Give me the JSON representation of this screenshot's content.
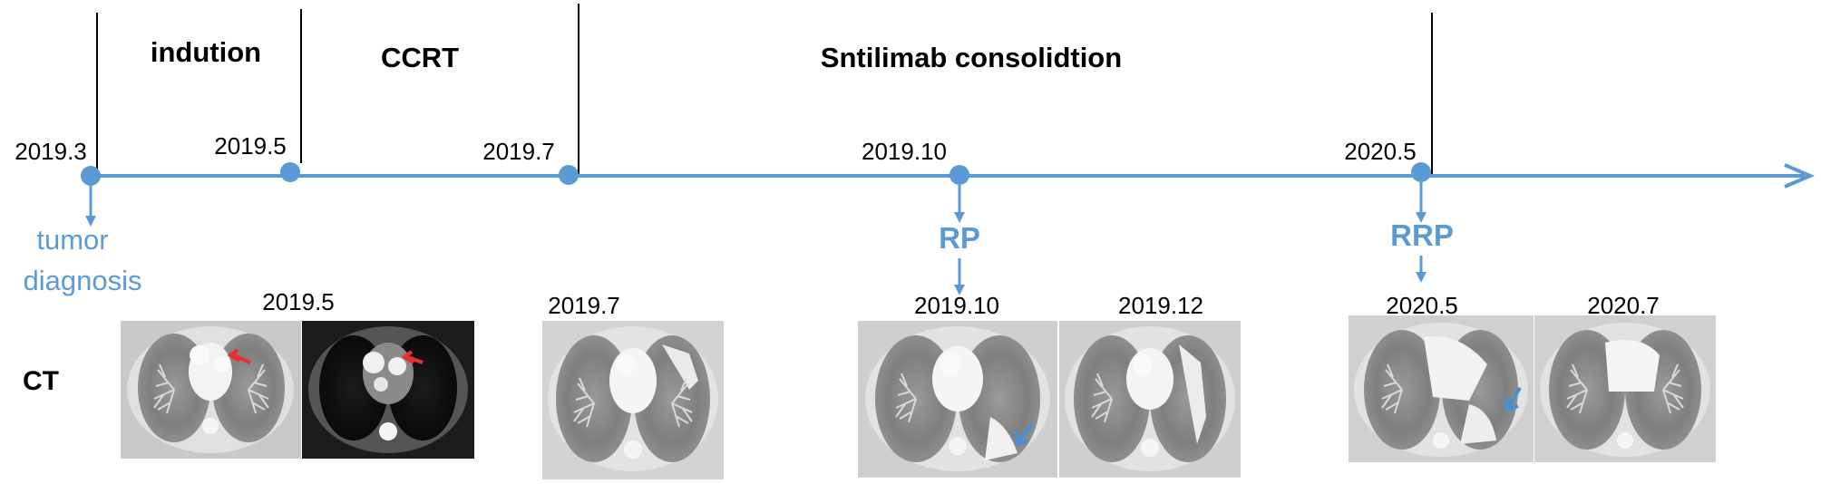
{
  "phases": {
    "induction": "indution",
    "ccrt": "CCRT",
    "consolidation": "Sntilimab consolidtion"
  },
  "timeline": {
    "dates": [
      "2019.3",
      "2019.5",
      "2019.7",
      "2019.10",
      "2020.5"
    ]
  },
  "events": {
    "diagnosis": [
      "tumor",
      "diagnosis"
    ],
    "rp": "RP",
    "rrp": "RRP"
  },
  "ct": {
    "row_label": "CT",
    "labels": [
      "2019.5",
      "2019.7",
      "2019.10",
      "2019.12",
      "2020.5",
      "2020.7"
    ]
  },
  "colors": {
    "timeline": "#5b9bd5",
    "event_text": "#5b9bd5",
    "arrow_red": "#e8312f",
    "arrow_blue": "#4a8fd4",
    "divider": "#000000"
  }
}
